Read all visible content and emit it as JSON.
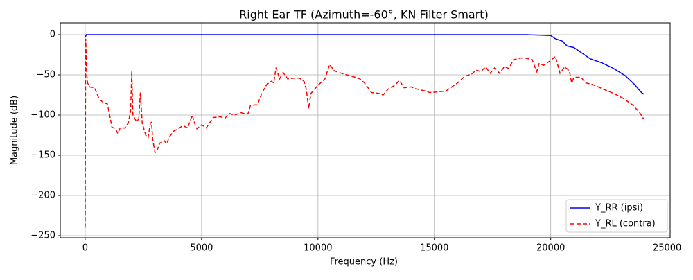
{
  "chart_data": {
    "type": "line",
    "title": "Right Ear TF (Azimuth=-60°, KN Filter Smart)",
    "x_label": "Frequency (Hz)",
    "y_label": "Magnitude (dB)",
    "xlim": [
      -1070,
      25130
    ],
    "ylim": [
      -252.6,
      14.7
    ],
    "xticks": [
      0,
      5000,
      10000,
      15000,
      20000,
      25000
    ],
    "yticks": [
      {
        "value": -250,
        "label": "−250"
      },
      {
        "value": -200,
        "label": "−200"
      },
      {
        "value": -150,
        "label": "−150"
      },
      {
        "value": -100,
        "label": "−100"
      },
      {
        "value": -50,
        "label": "−50"
      },
      0
    ],
    "grid": true,
    "legend": "lower right",
    "series": [
      {
        "name": "Y_RR (ipsi)",
        "color": "#0000ff",
        "style": "solid",
        "x": [
          0,
          50,
          19000,
          20000,
          20200,
          20500,
          20700,
          21000,
          21300,
          21700,
          22200,
          22700,
          23200,
          23600,
          23900,
          24000
        ],
        "values": [
          -3,
          0,
          0,
          -1,
          -5,
          -8,
          -14,
          -16,
          -22,
          -30,
          -35,
          -42,
          -51,
          -62,
          -72,
          -74
        ]
      },
      {
        "name": "Y_RL (contra)",
        "color": "#ff0000",
        "style": "dashed",
        "x": [
          0,
          20,
          70,
          100,
          200,
          400,
          600,
          800,
          950,
          1050,
          1150,
          1300,
          1400,
          1500,
          1700,
          1850,
          1950,
          2000,
          2050,
          2200,
          2300,
          2370,
          2450,
          2600,
          2700,
          2800,
          2850,
          2900,
          3000,
          3100,
          3200,
          3400,
          3500,
          3600,
          3800,
          4000,
          4200,
          4400,
          4600,
          4700,
          4800,
          5000,
          5200,
          5500,
          5800,
          6000,
          6200,
          6400,
          6700,
          6900,
          7000,
          7100,
          7400,
          7600,
          7800,
          8000,
          8100,
          8200,
          8350,
          8500,
          8700,
          9000,
          9200,
          9400,
          9500,
          9600,
          9700,
          10000,
          10300,
          10500,
          10700,
          11000,
          11500,
          11800,
          12000,
          12300,
          12600,
          12800,
          13000,
          13300,
          13500,
          13700,
          14000,
          14300,
          14600,
          14800,
          15200,
          15500,
          16000,
          16300,
          16600,
          16800,
          17000,
          17200,
          17400,
          17600,
          17800,
          18000,
          18200,
          18400,
          18700,
          18900,
          19200,
          19400,
          19500,
          19700,
          20000,
          20200,
          20400,
          20600,
          20800,
          20900,
          21000,
          21300,
          21500,
          21800,
          22200,
          22700,
          23100,
          23500,
          23800,
          24000
        ],
        "values": [
          -240,
          -5,
          -50,
          -60,
          -65,
          -66,
          -80,
          -85,
          -86,
          -100,
          -115,
          -117,
          -123,
          -116,
          -116,
          -110,
          -95,
          -46,
          -100,
          -108,
          -105,
          -72,
          -110,
          -125,
          -128,
          -110,
          -109,
          -130,
          -147,
          -143,
          -135,
          -132,
          -136,
          -128,
          -120,
          -117,
          -113,
          -116,
          -100,
          -110,
          -117,
          -112,
          -116,
          -103,
          -102,
          -104,
          -98,
          -100,
          -97,
          -99,
          -98,
          -88,
          -87,
          -72,
          -62,
          -58,
          -60,
          -41,
          -55,
          -47,
          -55,
          -54,
          -54,
          -58,
          -68,
          -92,
          -73,
          -63,
          -55,
          -37,
          -45,
          -48,
          -52,
          -55,
          -60,
          -72,
          -73,
          -75,
          -68,
          -63,
          -57,
          -66,
          -65,
          -68,
          -70,
          -72,
          -71,
          -70,
          -60,
          -52,
          -49,
          -44,
          -46,
          -40,
          -48,
          -41,
          -48,
          -40,
          -42,
          -31,
          -29,
          -29,
          -31,
          -46,
          -36,
          -38,
          -32,
          -27,
          -48,
          -40,
          -45,
          -60,
          -53,
          -53,
          -60,
          -62,
          -67,
          -73,
          -79,
          -87,
          -96,
          -105
        ]
      }
    ]
  }
}
